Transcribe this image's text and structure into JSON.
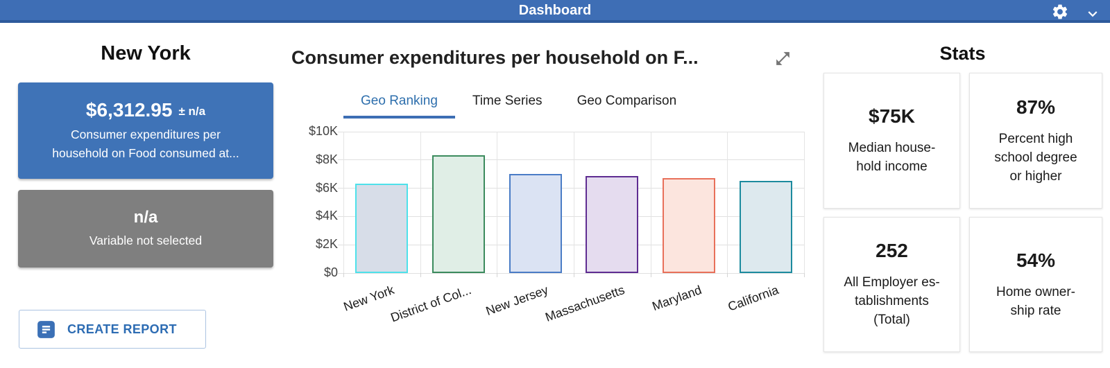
{
  "header": {
    "title": "Dashboard"
  },
  "left_panel": {
    "title": "New York",
    "primary_card": {
      "value": "$6,312.95",
      "uncertainty": "± n/a",
      "label": "Consumer expenditures per\nhousehold on Food consumed at..."
    },
    "secondary_card": {
      "value": "n/a",
      "label": "Variable not selected"
    },
    "create_report_label": "CREATE REPORT"
  },
  "chart_panel": {
    "title": "Consumer expenditures per household on F...",
    "tabs": [
      {
        "label": "Geo Ranking",
        "active": true
      },
      {
        "label": "Time Series",
        "active": false
      },
      {
        "label": "Geo Comparison",
        "active": false
      }
    ]
  },
  "chart_data": {
    "type": "bar",
    "title": "Consumer expenditures per household on F...",
    "categories": [
      "New York",
      "District of Col...",
      "New Jersey",
      "Massachusetts",
      "Maryland",
      "California"
    ],
    "values": [
      6312.95,
      8310,
      6990,
      6850,
      6700,
      6520
    ],
    "selected_index": 0,
    "y_ticks": [
      {
        "value": 0,
        "label": "$0"
      },
      {
        "value": 2000,
        "label": "$2K"
      },
      {
        "value": 4000,
        "label": "$4K"
      },
      {
        "value": 6000,
        "label": "$6K"
      },
      {
        "value": 8000,
        "label": "$8K"
      },
      {
        "value": 10000,
        "label": "$10K"
      }
    ],
    "ylim": [
      0,
      10000
    ],
    "grid": true,
    "legend": "none",
    "bar_styles": [
      {
        "stroke": "#4ee1ea",
        "fill": "#d7dde8"
      },
      {
        "stroke": "#3b8b5d",
        "fill": "#e0eee6"
      },
      {
        "stroke": "#4a7cc6",
        "fill": "#dbe3f3"
      },
      {
        "stroke": "#5e2c91",
        "fill": "#e5dcef"
      },
      {
        "stroke": "#e8705a",
        "fill": "#fce5de"
      },
      {
        "stroke": "#1c8a9e",
        "fill": "#dde9ee"
      }
    ]
  },
  "stats_panel": {
    "title": "Stats",
    "cards": [
      {
        "value": "$75K",
        "label": "Median house-\nhold income"
      },
      {
        "value": "87%",
        "label": "Percent high\nschool degree\nor higher"
      },
      {
        "value": "252",
        "label": "All Employer es-\ntablishments\n(Total)"
      },
      {
        "value": "54%",
        "label": "Home owner-\nship rate"
      }
    ]
  },
  "colors": {
    "header_bg": "#3e6eb5",
    "header_border": "#2d5a9b",
    "primary_card_bg": "#3f73b7",
    "secondary_card_bg": "#7f7f7f",
    "accent_blue": "#2e6fad",
    "tab_underline": "#3d6eb4",
    "gridline": "#e0e0e0"
  }
}
